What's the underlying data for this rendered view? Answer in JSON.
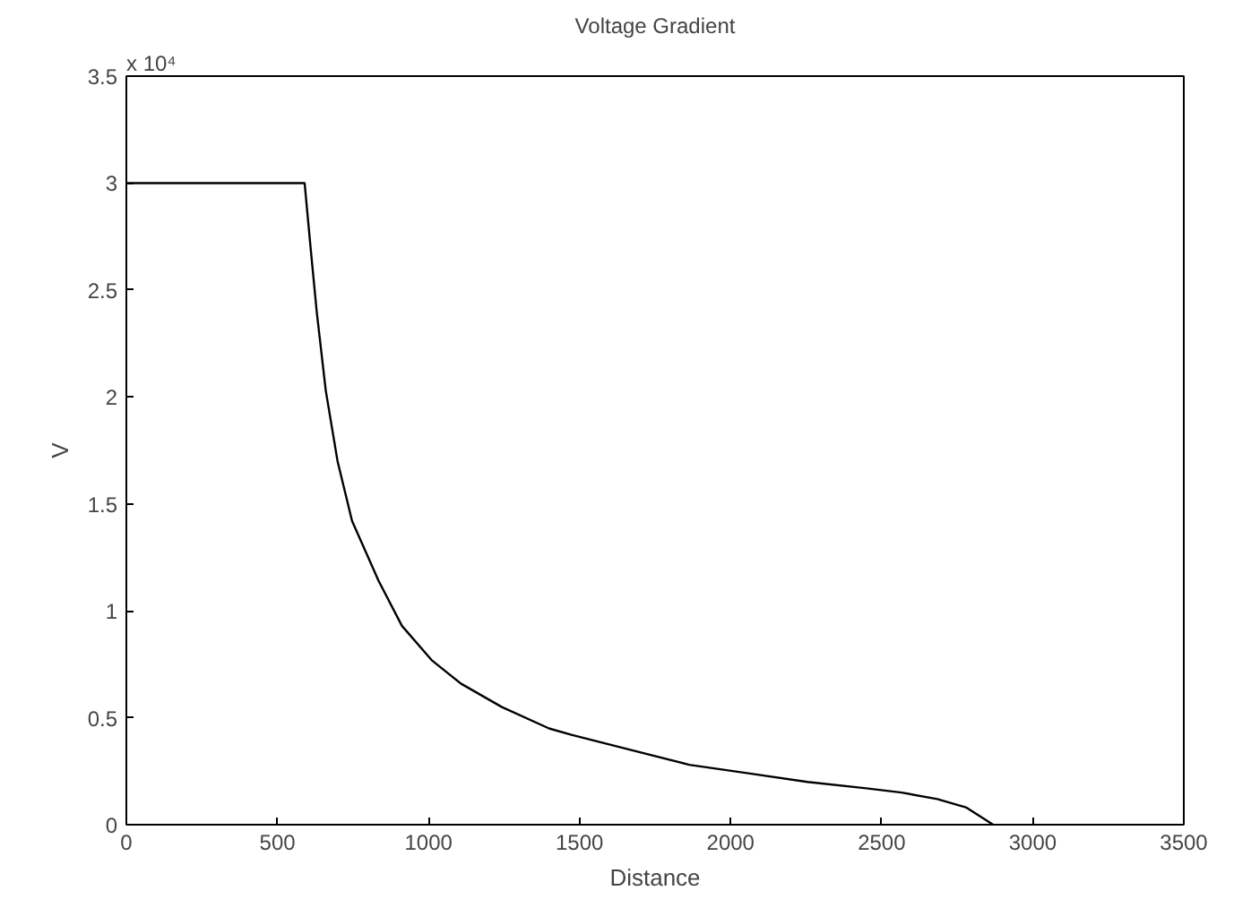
{
  "chart_data": {
    "type": "line",
    "title": "Voltage Gradient",
    "xlabel": "Distance",
    "ylabel": "V",
    "annotations": [
      "x 10⁴"
    ],
    "series": [
      {
        "color": "#000000",
        "x": [
          0,
          590,
          611,
          630,
          660,
          699,
          747,
          835,
          912,
          1010,
          1107,
          1243,
          1399,
          1473,
          1668,
          1863,
          2059,
          2254,
          2449,
          2566,
          2684,
          2781,
          2869
        ],
        "values": [
          3.0,
          3.0,
          2.68,
          2.4,
          2.03,
          1.7,
          1.42,
          1.14,
          0.93,
          0.77,
          0.66,
          0.55,
          0.45,
          0.42,
          0.35,
          0.28,
          0.24,
          0.2,
          0.17,
          0.15,
          0.12,
          0.08,
          0
        ]
      }
    ],
    "xlim": [
      0,
      3500
    ],
    "ylim": [
      0,
      3.5
    ],
    "xticks": [
      0,
      500,
      1000,
      1500,
      2000,
      2500,
      3000,
      3500
    ],
    "yticks": [
      0,
      0.5,
      1,
      1.5,
      2,
      2.5,
      3,
      3.5
    ],
    "line_style": "solid"
  }
}
